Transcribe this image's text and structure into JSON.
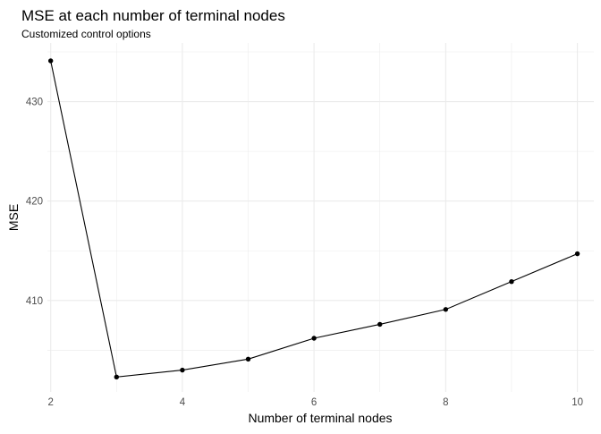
{
  "chart_data": {
    "type": "line",
    "title": "MSE at each number of terminal nodes",
    "subtitle": "Customized control options",
    "xlabel": "Number of terminal nodes",
    "ylabel": "MSE",
    "x": [
      2,
      3,
      4,
      5,
      6,
      7,
      8,
      9,
      10
    ],
    "y": [
      434.1,
      402.3,
      403.0,
      404.1,
      406.2,
      407.6,
      409.1,
      411.9,
      414.7
    ],
    "xlim": [
      1.95,
      10.25
    ],
    "ylim": [
      400.8,
      435.9
    ],
    "x_ticks": [
      2,
      4,
      6,
      8,
      10
    ],
    "x_tick_labels": [
      "2",
      "4",
      "6",
      "8",
      "10"
    ],
    "y_ticks": [
      410,
      420,
      430
    ],
    "y_tick_labels": [
      "410",
      "420",
      "430"
    ],
    "grid": true,
    "markers": true,
    "line_color": "#000000",
    "grid_color": "#ebebeb",
    "background": "#ffffff"
  }
}
